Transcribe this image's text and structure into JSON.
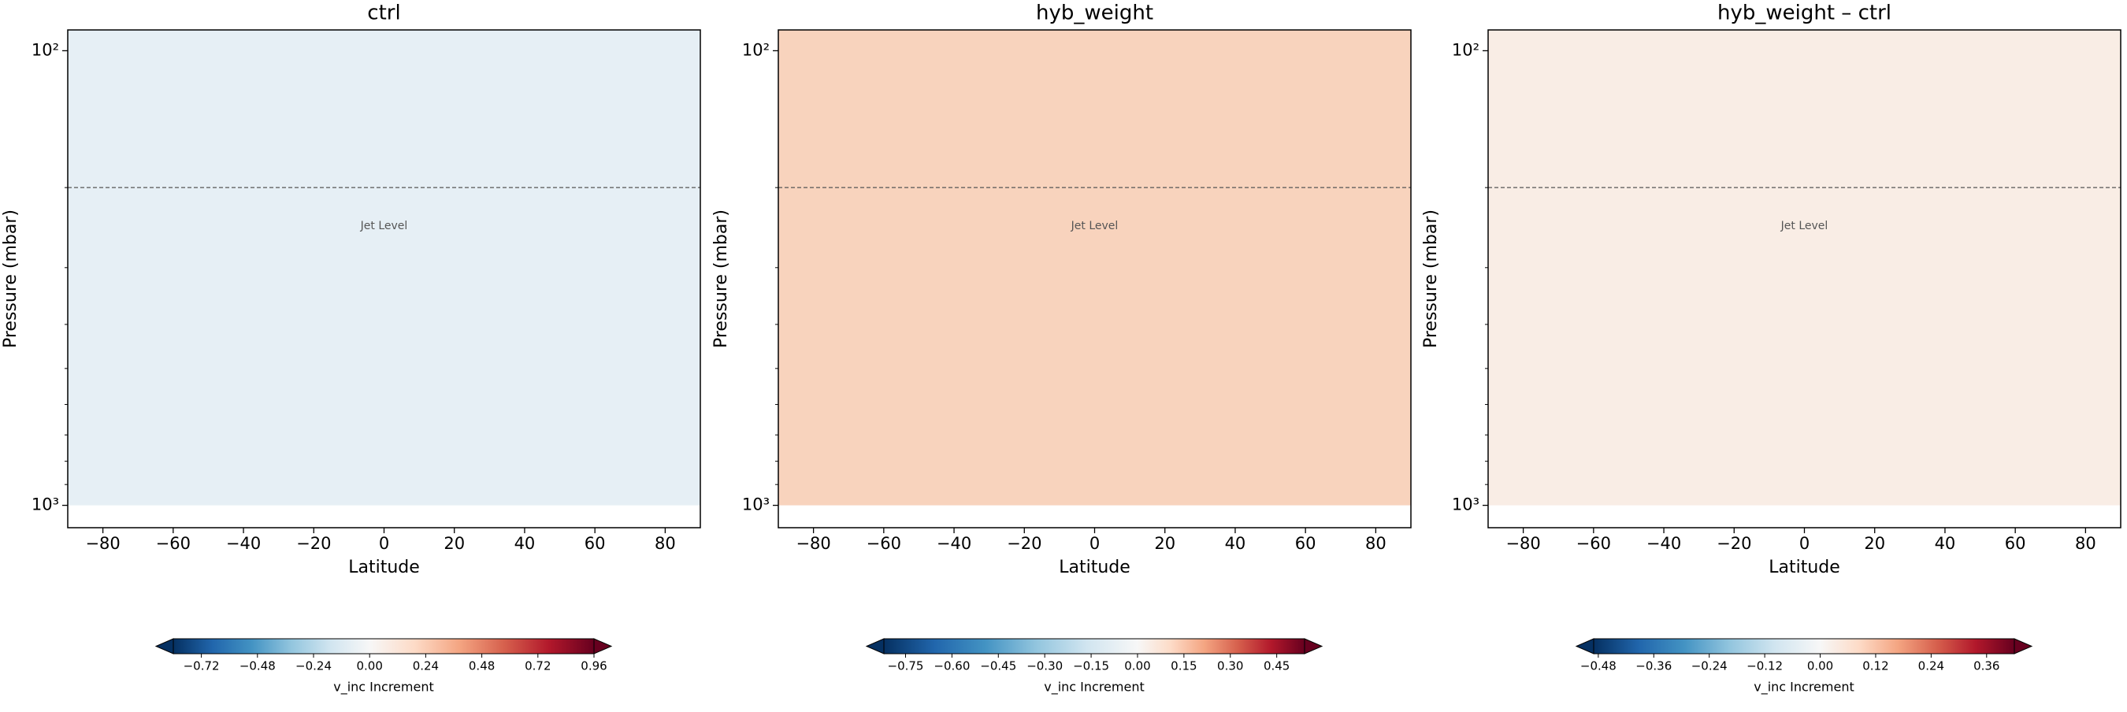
{
  "chart_data": [
    {
      "type": "contour",
      "title": "ctrl",
      "xlabel": "Latitude",
      "ylabel": "Pressure (mbar)",
      "xlim": [
        -90,
        90
      ],
      "xticks": [
        {
          "value": -80,
          "label": "−80"
        },
        {
          "value": -60,
          "label": "−60"
        },
        {
          "value": -40,
          "label": "−40"
        },
        {
          "value": -20,
          "label": "−20"
        },
        0,
        20,
        40,
        60,
        80
      ],
      "ylim": [
        90,
        1120
      ],
      "yscale": "log",
      "yinverted": true,
      "yticks": [
        {
          "value": 100,
          "label": "10²"
        },
        {
          "value": 1000,
          "label": "10³"
        }
      ],
      "yminorticks": [
        200,
        300,
        400,
        500,
        600,
        700,
        800,
        900
      ],
      "data_bottom": 1000,
      "field_color": "#e6eff5",
      "hline": 200,
      "annotation": {
        "text": "Jet Level",
        "x": 0,
        "y": 243
      },
      "colorbar": {
        "label": "v_inc Increment",
        "clim": [
          -0.84,
          0.96
        ],
        "cmap": "RdBu_r",
        "ticks": [
          {
            "value": -0.72,
            "label": "−0.72"
          },
          {
            "value": -0.48,
            "label": "−0.48"
          },
          {
            "value": -0.24,
            "label": "−0.24"
          },
          {
            "value": 0,
            "label": "0.00"
          },
          0.24,
          0.48,
          0.72,
          0.96
        ]
      }
    },
    {
      "type": "contour",
      "title": "hyb_weight",
      "xlabel": "Latitude",
      "ylabel": "Pressure (mbar)",
      "xlim": [
        -90,
        90
      ],
      "xticks": [
        {
          "value": -80,
          "label": "−80"
        },
        {
          "value": -60,
          "label": "−60"
        },
        {
          "value": -40,
          "label": "−40"
        },
        {
          "value": -20,
          "label": "−20"
        },
        0,
        20,
        40,
        60,
        80
      ],
      "ylim": [
        90,
        1120
      ],
      "yscale": "log",
      "yinverted": true,
      "yticks": [
        {
          "value": 100,
          "label": "10²"
        },
        {
          "value": 1000,
          "label": "10³"
        }
      ],
      "yminorticks": [
        200,
        300,
        400,
        500,
        600,
        700,
        800,
        900
      ],
      "data_bottom": 1000,
      "field_color": "#f8d3bd",
      "hline": 200,
      "annotation": {
        "text": "Jet Level",
        "x": 0,
        "y": 243
      },
      "colorbar": {
        "label": "v_inc Increment",
        "clim": [
          -0.82,
          0.54
        ],
        "cmap": "RdBu_r",
        "ticks": [
          {
            "value": -0.75,
            "label": "−0.75"
          },
          {
            "value": -0.6,
            "label": "−0.60"
          },
          {
            "value": -0.45,
            "label": "−0.45"
          },
          {
            "value": -0.3,
            "label": "−0.30"
          },
          {
            "value": -0.15,
            "label": "−0.15"
          },
          {
            "value": 0,
            "label": "0.00"
          },
          0.15,
          {
            "value": 0.3,
            "label": "0.30"
          },
          0.45
        ]
      }
    },
    {
      "type": "contour",
      "title": "hyb_weight – ctrl",
      "xlabel": "Latitude",
      "ylabel": "Pressure (mbar)",
      "xlim": [
        -90,
        90
      ],
      "xticks": [
        {
          "value": -80,
          "label": "−80"
        },
        {
          "value": -60,
          "label": "−60"
        },
        {
          "value": -40,
          "label": "−40"
        },
        {
          "value": -20,
          "label": "−20"
        },
        0,
        20,
        40,
        60,
        80
      ],
      "ylim": [
        90,
        1120
      ],
      "yscale": "log",
      "yinverted": true,
      "yticks": [
        {
          "value": 100,
          "label": "10²"
        },
        {
          "value": 1000,
          "label": "10³"
        }
      ],
      "yminorticks": [
        200,
        300,
        400,
        500,
        600,
        700,
        800,
        900
      ],
      "data_bottom": 1000,
      "field_color": "#f9ede5",
      "hline": 200,
      "annotation": {
        "text": "Jet Level",
        "x": 0,
        "y": 243
      },
      "colorbar": {
        "label": "v_inc Increment",
        "clim": [
          -0.49,
          0.42
        ],
        "cmap": "RdBu_r",
        "ticks": [
          {
            "value": -0.48,
            "label": "−0.48"
          },
          {
            "value": -0.36,
            "label": "−0.36"
          },
          {
            "value": -0.24,
            "label": "−0.24"
          },
          {
            "value": -0.12,
            "label": "−0.12"
          },
          {
            "value": 0,
            "label": "0.00"
          },
          0.12,
          0.24,
          0.36
        ]
      }
    }
  ]
}
